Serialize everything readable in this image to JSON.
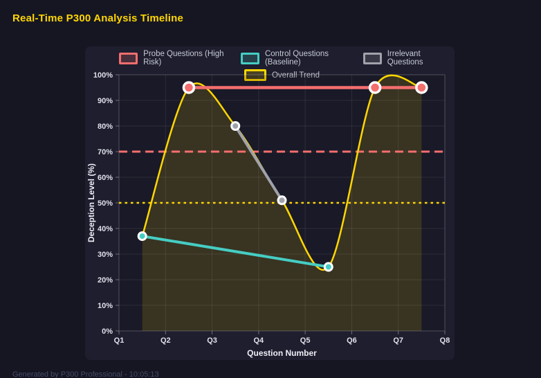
{
  "window": {
    "title": "Real-Time P300 Analysis Timeline",
    "footer": "Generated by P300 Professional - 10:05:13"
  },
  "colors": {
    "background": "#161623",
    "panel": "#1e1e2f",
    "title": "#ffd700",
    "probe": "#f46e6e",
    "control": "#45cdc3",
    "irrelevant": "#a0a2ab",
    "trend": "#ffd700",
    "threshold_high": "#f46e6e",
    "threshold_mid": "#ffd700",
    "tick_text": "#dfe1ea",
    "legend_text": "#c6c9d4"
  },
  "chart_data": {
    "type": "line",
    "title": "Real-Time P300 Analysis Timeline",
    "xlabel": "Question Number",
    "ylabel": "Deception Level (%)",
    "x_tick_labels": [
      "Q1",
      "Q2",
      "Q3",
      "Q4",
      "Q5",
      "Q6",
      "Q7",
      "Q8"
    ],
    "x_range": [
      1,
      8
    ],
    "ylim": [
      0,
      100
    ],
    "y_ticks": [
      0,
      10,
      20,
      30,
      40,
      50,
      60,
      70,
      80,
      90,
      100
    ],
    "y_tick_suffix": "%",
    "grid": true,
    "legend_position": "top-center",
    "series": [
      {
        "name": "Probe Questions (High Risk)",
        "color": "#f46e6e",
        "x": [
          2.5,
          6.5,
          7.5
        ],
        "values": [
          95,
          95,
          95
        ],
        "line_width": 4.5,
        "marker_radius": 7.5,
        "smooth": false,
        "fill": false
      },
      {
        "name": "Control Questions (Baseline)",
        "color": "#45cdc3",
        "x": [
          1.5,
          5.5
        ],
        "values": [
          37,
          25
        ],
        "line_width": 4,
        "marker_radius": 5.5,
        "smooth": false,
        "fill": false
      },
      {
        "name": "Irrelevant Questions",
        "color": "#a0a2ab",
        "x": [
          3.5,
          4.5
        ],
        "values": [
          80,
          51
        ],
        "line_width": 4,
        "marker_radius": 5.5,
        "smooth": false,
        "fill": false
      },
      {
        "name": "Overall Trend",
        "color": "#ffd700",
        "x": [
          1.5,
          2.5,
          3.5,
          4.5,
          5.5,
          6.5,
          7.5
        ],
        "values": [
          37,
          95,
          80,
          51,
          25,
          95,
          95
        ],
        "line_width": 2.5,
        "marker_radius": 0,
        "smooth": true,
        "fill": true,
        "fill_color": "rgba(255,215,0,0.14)"
      }
    ],
    "thresholds": [
      {
        "value": 70,
        "color": "#f46e6e",
        "style": "dashed",
        "width": 3
      },
      {
        "value": 50,
        "color": "#ffd700",
        "style": "dotted",
        "width": 2.5
      }
    ]
  }
}
